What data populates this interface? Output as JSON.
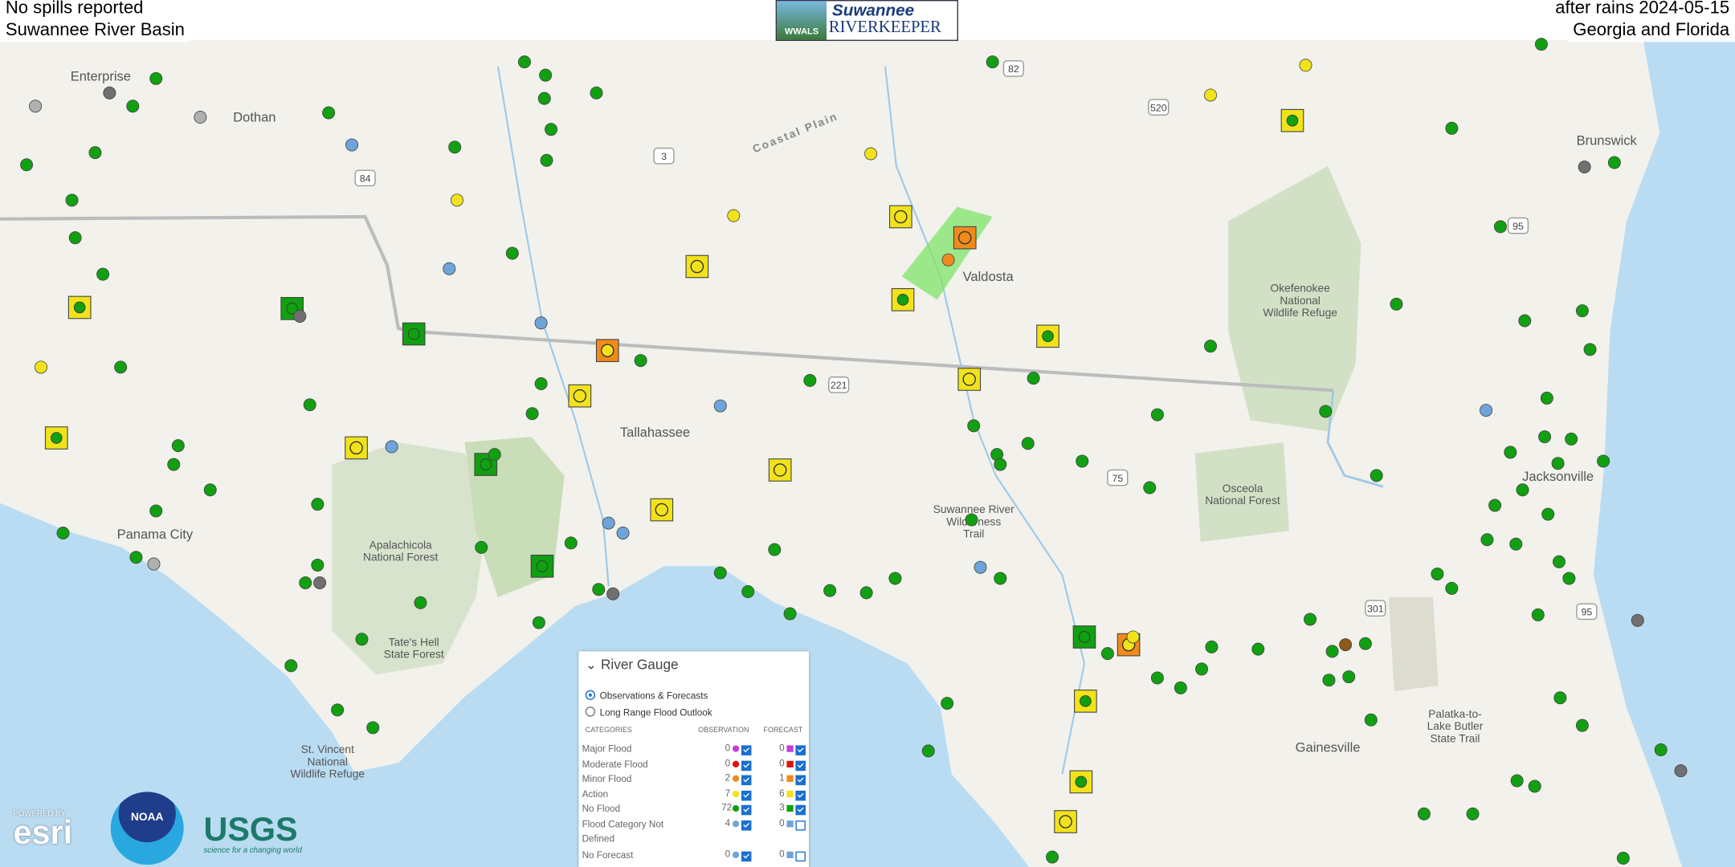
{
  "header": {
    "left_top": "No spills reported",
    "left_bottom": "Suwannee River Basin",
    "right_top": "after rains 2024-05-15",
    "right_bottom": "Georgia and Florida",
    "logo_small": "WWALS",
    "logo_top": "Suwannee",
    "logo_bottom": "RIVERKEEPER"
  },
  "map_labels": [
    {
      "lines": [
        "Enterprise"
      ]
    },
    {
      "lines": [
        "Dothan"
      ]
    },
    {
      "lines": [
        "Coastal Plain"
      ]
    },
    {
      "lines": [
        "Valdosta"
      ]
    },
    {
      "lines": [
        "Okefenokee",
        "National",
        "Wildlife Refuge"
      ]
    },
    {
      "lines": [
        "Tallahassee"
      ]
    },
    {
      "lines": [
        "Osceola",
        "National Forest"
      ]
    },
    {
      "lines": [
        "Jacksonville"
      ]
    },
    {
      "lines": [
        "Panama City"
      ]
    },
    {
      "lines": [
        "Apalachicola",
        "National Forest"
      ]
    },
    {
      "lines": [
        "Suwannee River",
        "Wilderness",
        "Trail"
      ]
    },
    {
      "lines": [
        "Tate's Hell",
        "State Forest"
      ]
    },
    {
      "lines": [
        "Gainesville"
      ]
    },
    {
      "lines": [
        "Palatka-to-",
        "Lake Butler",
        "State Trail"
      ]
    },
    {
      "lines": [
        "St. Vincent",
        "National",
        "Wildlife Refuge"
      ]
    },
    {
      "lines": [
        "Brunswick"
      ]
    }
  ],
  "highway_shields": [
    "82",
    "520",
    "3",
    "84",
    "95",
    "221",
    "75",
    "301",
    "95"
  ],
  "legend": {
    "title": "River Gauge",
    "options": [
      "Observations & Forecasts",
      "Long Range Flood Outlook"
    ],
    "columns": [
      "CATEGORIES",
      "OBSERVATION",
      "FORECAST"
    ],
    "rows": [
      {
        "category": "Major Flood",
        "observation": 0,
        "forecast": 0,
        "color": "#c23ee0"
      },
      {
        "category": "Moderate Flood",
        "observation": 0,
        "forecast": 0,
        "color": "#e01010"
      },
      {
        "category": "Minor Flood",
        "observation": 2,
        "forecast": 1,
        "color": "#f08a1a"
      },
      {
        "category": "Action",
        "observation": 7,
        "forecast": 6,
        "color": "#f2e21a"
      },
      {
        "category": "No Flood",
        "observation": 72,
        "forecast": 3,
        "color": "#11a011"
      },
      {
        "category": "Flood Category Not Defined",
        "observation": 4,
        "forecast": 0,
        "color": "#6ea4da"
      },
      {
        "category": "No Forecast",
        "observation": 0,
        "forecast": 0,
        "color": "#6ea4da"
      }
    ]
  },
  "attribution": {
    "esri_top": "POWERED BY",
    "esri": "esri",
    "noaa": "NOAA",
    "usgs": "USGS",
    "usgs_tag": "science for a changing world"
  }
}
